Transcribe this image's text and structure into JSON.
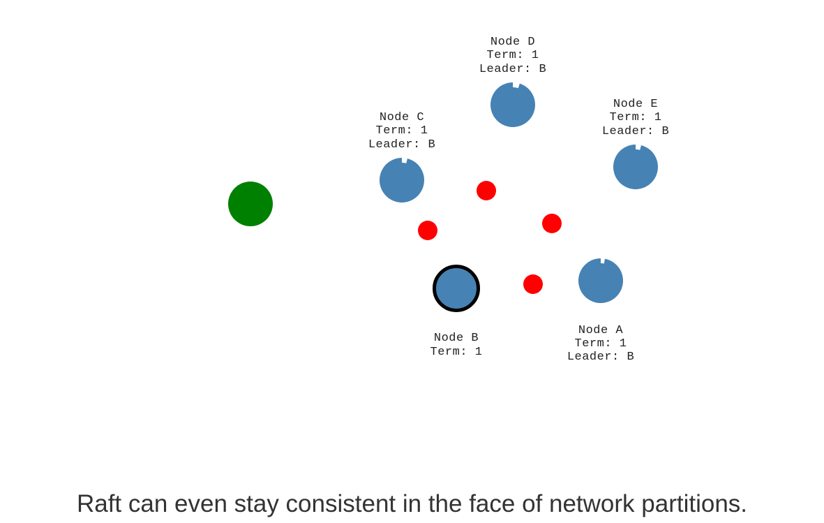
{
  "colors": {
    "node": "#4682b4",
    "leader_outline": "#000000",
    "client": "#008000",
    "message": "#ff0000",
    "text": "#222222",
    "caption": "#333333"
  },
  "client": {
    "name": "client",
    "color": "#008000"
  },
  "nodes": [
    {
      "id": "A",
      "name": "Node A",
      "term": "Term: 1",
      "leader": "Leader: B",
      "is_leader": false,
      "timeout_remaining": 0.97
    },
    {
      "id": "B",
      "name": "Node B",
      "term": "Term: 1",
      "leader": "",
      "is_leader": true,
      "timeout_remaining": 1.0
    },
    {
      "id": "C",
      "name": "Node C",
      "term": "Term: 1",
      "leader": "Leader: B",
      "is_leader": false,
      "timeout_remaining": 0.96
    },
    {
      "id": "D",
      "name": "Node D",
      "term": "Term: 1",
      "leader": "Leader: B",
      "is_leader": false,
      "timeout_remaining": 0.95
    },
    {
      "id": "E",
      "name": "Node E",
      "term": "Term: 1",
      "leader": "Leader: B",
      "is_leader": false,
      "timeout_remaining": 0.96
    }
  ],
  "messages": [
    {
      "from": "B",
      "to": "A"
    },
    {
      "from": "B",
      "to": "C"
    },
    {
      "from": "B",
      "to": "D"
    },
    {
      "from": "B",
      "to": "E"
    }
  ],
  "caption": "Raft can even stay consistent in the face of network partitions."
}
